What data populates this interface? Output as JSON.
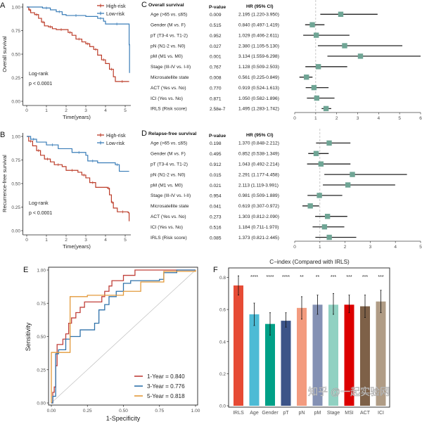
{
  "watermark": "知乎 @一起实验网",
  "chart_data": [
    {
      "panel": "A",
      "type": "line",
      "kind": "kaplan-meier",
      "ylabel": "Overall survival",
      "xlabel": "Time(years)",
      "xlim": [
        0,
        5.25
      ],
      "ylim": [
        0,
        1
      ],
      "xticks": [
        "0",
        "1",
        "2",
        "3",
        "4",
        "5"
      ],
      "yticks": [
        "0.00",
        "0.25",
        "0.50",
        "0.75",
        "1.00"
      ],
      "annotation": [
        "Log-rank",
        "p < 0.0001"
      ],
      "legend_position": "top-right",
      "series": [
        {
          "name": "High-risk",
          "color": "#BC3C29",
          "x": [
            0,
            0.1,
            0.2,
            0.4,
            0.6,
            0.75,
            0.9,
            1.1,
            1.3,
            1.5,
            2.0,
            2.1,
            2.3,
            2.5,
            2.8,
            3.0,
            3.2,
            3.4,
            3.6,
            3.8,
            4.0,
            4.2,
            4.4,
            4.5,
            5.2
          ],
          "y": [
            1.0,
            0.97,
            0.94,
            0.92,
            0.88,
            0.84,
            0.8,
            0.79,
            0.77,
            0.76,
            0.76,
            0.73,
            0.7,
            0.66,
            0.63,
            0.61,
            0.58,
            0.55,
            0.49,
            0.44,
            0.4,
            0.34,
            0.26,
            0.21,
            0.21
          ]
        },
        {
          "name": "Low-risk",
          "color": "#3A7DB8",
          "x": [
            0,
            0.8,
            1.2,
            1.5,
            1.8,
            2.0,
            3.0,
            3.6,
            3.9,
            4.0,
            5.15,
            5.2,
            5.22
          ],
          "y": [
            1.0,
            0.99,
            0.97,
            0.95,
            0.92,
            0.91,
            0.9,
            0.88,
            0.85,
            0.82,
            0.82,
            0.6,
            0.3
          ]
        }
      ]
    },
    {
      "panel": "B",
      "type": "line",
      "kind": "kaplan-meier",
      "ylabel": "Recurrence-free survival",
      "xlabel": "Time(years)",
      "xlim": [
        0,
        5.25
      ],
      "ylim": [
        0,
        1
      ],
      "xticks": [
        "0",
        "1",
        "2",
        "3",
        "4",
        "5"
      ],
      "yticks": [
        "0.00",
        "0.25",
        "0.50",
        "0.75",
        "1.00"
      ],
      "annotation": [
        "Log-rank",
        "p < 0.0001"
      ],
      "legend_position": "top-right",
      "series": [
        {
          "name": "High-risk",
          "color": "#BC3C29",
          "x": [
            0,
            0.1,
            0.3,
            0.5,
            0.7,
            0.9,
            1.2,
            1.4,
            1.8,
            2.0,
            2.6,
            2.8,
            3.0,
            3.2,
            3.5,
            4.1,
            4.2,
            4.3,
            4.4,
            4.6,
            5.15,
            5.2
          ],
          "y": [
            1.0,
            0.95,
            0.9,
            0.85,
            0.8,
            0.76,
            0.73,
            0.7,
            0.68,
            0.64,
            0.62,
            0.59,
            0.56,
            0.51,
            0.46,
            0.45,
            0.38,
            0.3,
            0.24,
            0.2,
            0.19,
            0.1
          ]
        },
        {
          "name": "Low-risk",
          "color": "#3A7DB8",
          "x": [
            0,
            0.2,
            0.5,
            1.0,
            1.6,
            2.3,
            3.0,
            3.1,
            3.6,
            4.5,
            4.7,
            5.2
          ],
          "y": [
            1.0,
            0.97,
            0.94,
            0.91,
            0.87,
            0.83,
            0.8,
            0.74,
            0.72,
            0.7,
            0.63,
            0.63
          ]
        }
      ]
    },
    {
      "panel": "C",
      "type": "forest",
      "title": "Overall survival",
      "columns": {
        "p": "P-value",
        "hr": "HR (95% CI)"
      },
      "xlim": [
        0,
        6
      ],
      "xticks": [
        "0",
        "1",
        "2",
        "3",
        "4",
        "5",
        "6"
      ],
      "reference": 1,
      "marker_color": "#6FA595",
      "rows": [
        {
          "label": "Age (>65 vs. ≤65)",
          "p": "0.009",
          "hr_text": "2.195 (1.220-3.950)",
          "hr": 2.195,
          "lo": 1.22,
          "hi": 3.95
        },
        {
          "label": "Gender (M vs. F)",
          "p": "0.515",
          "hr_text": "0.840 (0.497-1.419)",
          "hr": 0.84,
          "lo": 0.497,
          "hi": 1.419
        },
        {
          "label": "pT (T3-4 vs. T1-2)",
          "p": "0.952",
          "hr_text": "1.029 (0.406-2.611)",
          "hr": 1.029,
          "lo": 0.406,
          "hi": 2.611
        },
        {
          "label": "pN (N1-2 vs. N0)",
          "p": "0.027",
          "hr_text": "2.380 (1.105-5.130)",
          "hr": 2.38,
          "lo": 1.105,
          "hi": 5.13
        },
        {
          "label": "pM (M1 vs. M0)",
          "p": "0.001",
          "hr_text": "3.134 (1.559-6.298)",
          "hr": 3.134,
          "lo": 1.559,
          "hi": 6.298
        },
        {
          "label": "Stage (III-IV vs. I-II)",
          "p": "0.767",
          "hr_text": "1.128 (0.509-2.503)",
          "hr": 1.128,
          "lo": 0.509,
          "hi": 2.503
        },
        {
          "label": "Microsatellite state",
          "p": "0.008",
          "hr_text": "0.561 (0.225-0.849)",
          "hr": 0.561,
          "lo": 0.225,
          "hi": 0.849
        },
        {
          "label": "ACT (Yes vs. No)",
          "p": "0.770",
          "hr_text": "0.919 (0.524-1.613)",
          "hr": 0.919,
          "lo": 0.524,
          "hi": 1.613
        },
        {
          "label": "ICI (Yes vs. No)",
          "p": "0.871",
          "hr_text": "1.050 (0.582-1.896)",
          "hr": 1.05,
          "lo": 0.582,
          "hi": 1.896
        },
        {
          "label": "IRLS (Risk score)",
          "p": "2.58e-7",
          "hr_text": "1.495 (1.283-1.742)",
          "hr": 1.495,
          "lo": 1.283,
          "hi": 1.742
        }
      ]
    },
    {
      "panel": "D",
      "type": "forest",
      "title": "Relapse-free survival",
      "columns": {
        "p": "P-value",
        "hr": "HR (95% CI)"
      },
      "xlim": [
        0,
        5
      ],
      "xticks": [
        "0",
        "1",
        "2",
        "3",
        "4",
        "5"
      ],
      "reference": 1,
      "marker_color": "#6FA595",
      "rows": [
        {
          "label": "Age (>65 vs. ≤65)",
          "p": "0.198",
          "hr_text": "1.370 (0.848-2.212)",
          "hr": 1.37,
          "lo": 0.848,
          "hi": 2.212
        },
        {
          "label": "Gender (M vs. F)",
          "p": "0.495",
          "hr_text": "0.852 (0.538-1.349)",
          "hr": 0.852,
          "lo": 0.538,
          "hi": 1.349
        },
        {
          "label": "pT (T3-4 vs. T1-2)",
          "p": "0.912",
          "hr_text": "1.043 (0.492-2.214)",
          "hr": 1.043,
          "lo": 0.492,
          "hi": 2.214
        },
        {
          "label": "pN (N1-2 vs. N0)",
          "p": "0.015",
          "hr_text": "2.291 (1.177-4.458)",
          "hr": 2.291,
          "lo": 1.177,
          "hi": 4.458
        },
        {
          "label": "pM (M1 vs. M0)",
          "p": "0.021",
          "hr_text": "2.113 (1.119-3.991)",
          "hr": 2.113,
          "lo": 1.119,
          "hi": 3.991
        },
        {
          "label": "Stage (III-IV vs. I-II)",
          "p": "0.954",
          "hr_text": "0.981 (0.509-1.889)",
          "hr": 0.981,
          "lo": 0.509,
          "hi": 1.889
        },
        {
          "label": "Microsatellite state",
          "p": "0.041",
          "hr_text": "0.619 (0.307-0.972)",
          "hr": 0.619,
          "lo": 0.307,
          "hi": 0.972
        },
        {
          "label": "ACT (Yes vs. No)",
          "p": "0.273",
          "hr_text": "1.303 (0.812-2.090)",
          "hr": 1.303,
          "lo": 0.812,
          "hi": 2.09
        },
        {
          "label": "ICI (Yes vs. No)",
          "p": "0.516",
          "hr_text": "1.184 (0.711-1.970)",
          "hr": 1.184,
          "lo": 0.711,
          "hi": 1.97
        },
        {
          "label": "IRLS (Risk score)",
          "p": "0.085",
          "hr_text": "1.373 (0.821-2.445)",
          "hr": 1.373,
          "lo": 0.821,
          "hi": 2.445
        }
      ]
    },
    {
      "panel": "E",
      "type": "line",
      "kind": "roc",
      "xlabel": "1-Specificity",
      "ylabel": "Sensitivity",
      "xlim": [
        0,
        1
      ],
      "ylim": [
        0,
        1
      ],
      "xticks": [
        "0.00",
        "0.25",
        "0.50",
        "0.75",
        "1.00"
      ],
      "yticks": [
        "0.00",
        "0.25",
        "0.50",
        "0.75",
        "1.00"
      ],
      "legend_position": "bottom-right",
      "series": [
        {
          "name": "1-Year = 0.840",
          "color": "#C0403A",
          "x": [
            0,
            0.01,
            0.02,
            0.03,
            0.04,
            0.08,
            0.1,
            0.12,
            0.14,
            0.17,
            0.2,
            0.23,
            0.35,
            0.37,
            0.4,
            0.42,
            0.5,
            0.58,
            1.0
          ],
          "y": [
            0,
            0.08,
            0.12,
            0.28,
            0.44,
            0.48,
            0.52,
            0.6,
            0.64,
            0.68,
            0.72,
            0.76,
            0.8,
            0.84,
            0.88,
            0.92,
            0.96,
            1.0,
            1.0
          ]
        },
        {
          "name": "3-Year = 0.776",
          "color": "#2F72AA",
          "x": [
            0,
            0.01,
            0.03,
            0.05,
            0.1,
            0.13,
            0.2,
            0.3,
            0.33,
            0.37,
            0.4,
            0.45,
            0.5,
            0.55,
            0.75,
            0.78,
            0.87,
            1.0
          ],
          "y": [
            0,
            0.05,
            0.37,
            0.4,
            0.48,
            0.5,
            0.55,
            0.6,
            0.7,
            0.74,
            0.8,
            0.84,
            0.9,
            0.92,
            0.93,
            0.98,
            1.0,
            1.0
          ]
        },
        {
          "name": "5-Year = 0.818",
          "color": "#E39A3B",
          "x": [
            0,
            0,
            0.13,
            0.13,
            0.25,
            0.5,
            0.62,
            0.76,
            0.78,
            1.0
          ],
          "y": [
            0,
            0.38,
            0.38,
            0.8,
            0.81,
            0.84,
            0.91,
            0.91,
            0.99,
            1.0
          ]
        }
      ]
    },
    {
      "panel": "F",
      "type": "bar",
      "title": "C−index (Compared with IRLS)",
      "ylim": [
        0,
        0.85
      ],
      "yticks": [
        "0.0",
        "0.2",
        "0.4",
        "0.6",
        "0.8"
      ],
      "categories": [
        "IRLS",
        "Age",
        "Gender",
        "pT",
        "pN",
        "pM",
        "Stage",
        "MSI",
        "ACT",
        "ICI"
      ],
      "values": [
        0.75,
        0.57,
        0.51,
        0.53,
        0.61,
        0.63,
        0.63,
        0.63,
        0.62,
        0.65
      ],
      "ci_low": [
        0.69,
        0.5,
        0.44,
        0.49,
        0.54,
        0.57,
        0.57,
        0.58,
        0.55,
        0.58
      ],
      "ci_high": [
        0.81,
        0.64,
        0.58,
        0.58,
        0.68,
        0.69,
        0.7,
        0.69,
        0.69,
        0.72
      ],
      "significance": [
        "",
        "****",
        "****",
        "****",
        "**",
        "**",
        "***",
        "***",
        "***",
        "***"
      ],
      "colors": [
        "#E64B35",
        "#4DBBD5",
        "#00A087",
        "#3C5488",
        "#F39B7F",
        "#8491B4",
        "#91D1C2",
        "#DC0000",
        "#7E6148",
        "#B09C85"
      ]
    }
  ]
}
